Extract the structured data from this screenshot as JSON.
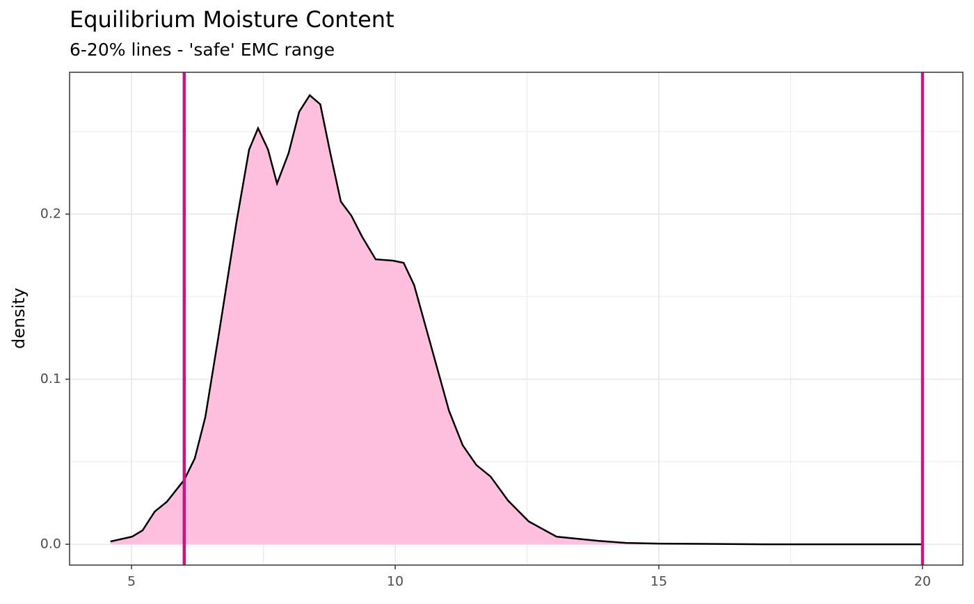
{
  "chart_data": {
    "type": "area",
    "title": "Equilibrium Moisture Content",
    "subtitle": "6-20% lines - 'safe' EMC range",
    "y_label": "density",
    "x": [
      4.6,
      5.01,
      5.21,
      5.44,
      5.67,
      6.0,
      6.2,
      6.4,
      6.66,
      6.99,
      7.23,
      7.4,
      7.59,
      7.76,
      7.98,
      8.18,
      8.38,
      8.58,
      8.77,
      8.97,
      9.17,
      9.37,
      9.63,
      9.96,
      10.16,
      10.36,
      10.69,
      11.02,
      11.28,
      11.54,
      11.81,
      12.14,
      12.53,
      13.06,
      13.85,
      14.38,
      15.0,
      17.0,
      20.0
    ],
    "values": [
      0.0017,
      0.0046,
      0.0084,
      0.0198,
      0.0257,
      0.039,
      0.052,
      0.077,
      0.128,
      0.195,
      0.239,
      0.252,
      0.239,
      0.2185,
      0.237,
      0.262,
      0.272,
      0.2665,
      0.237,
      0.2076,
      0.199,
      0.1865,
      0.1726,
      0.1718,
      0.1705,
      0.157,
      0.119,
      0.081,
      0.06,
      0.048,
      0.041,
      0.0265,
      0.0139,
      0.0046,
      0.0021,
      0.0008,
      0.0004,
      0,
      0
    ],
    "fill_color": "#ffc0e0",
    "line_color": "#000000",
    "vlines": [
      6,
      20
    ],
    "vline_color": "#c8177f",
    "xlim": [
      3.826,
      20.765
    ],
    "ylim": [
      -0.0126,
      0.2859
    ],
    "xticks": [
      5,
      10,
      15,
      20
    ],
    "yticks": [
      {
        "value": 0,
        "label": "0.0"
      },
      0.1,
      0.2
    ],
    "x_minor_breaks": [
      7.5,
      12.5,
      17.5
    ],
    "y_minor_breaks": [
      0.05,
      0.15,
      0.25
    ],
    "grid": true
  }
}
